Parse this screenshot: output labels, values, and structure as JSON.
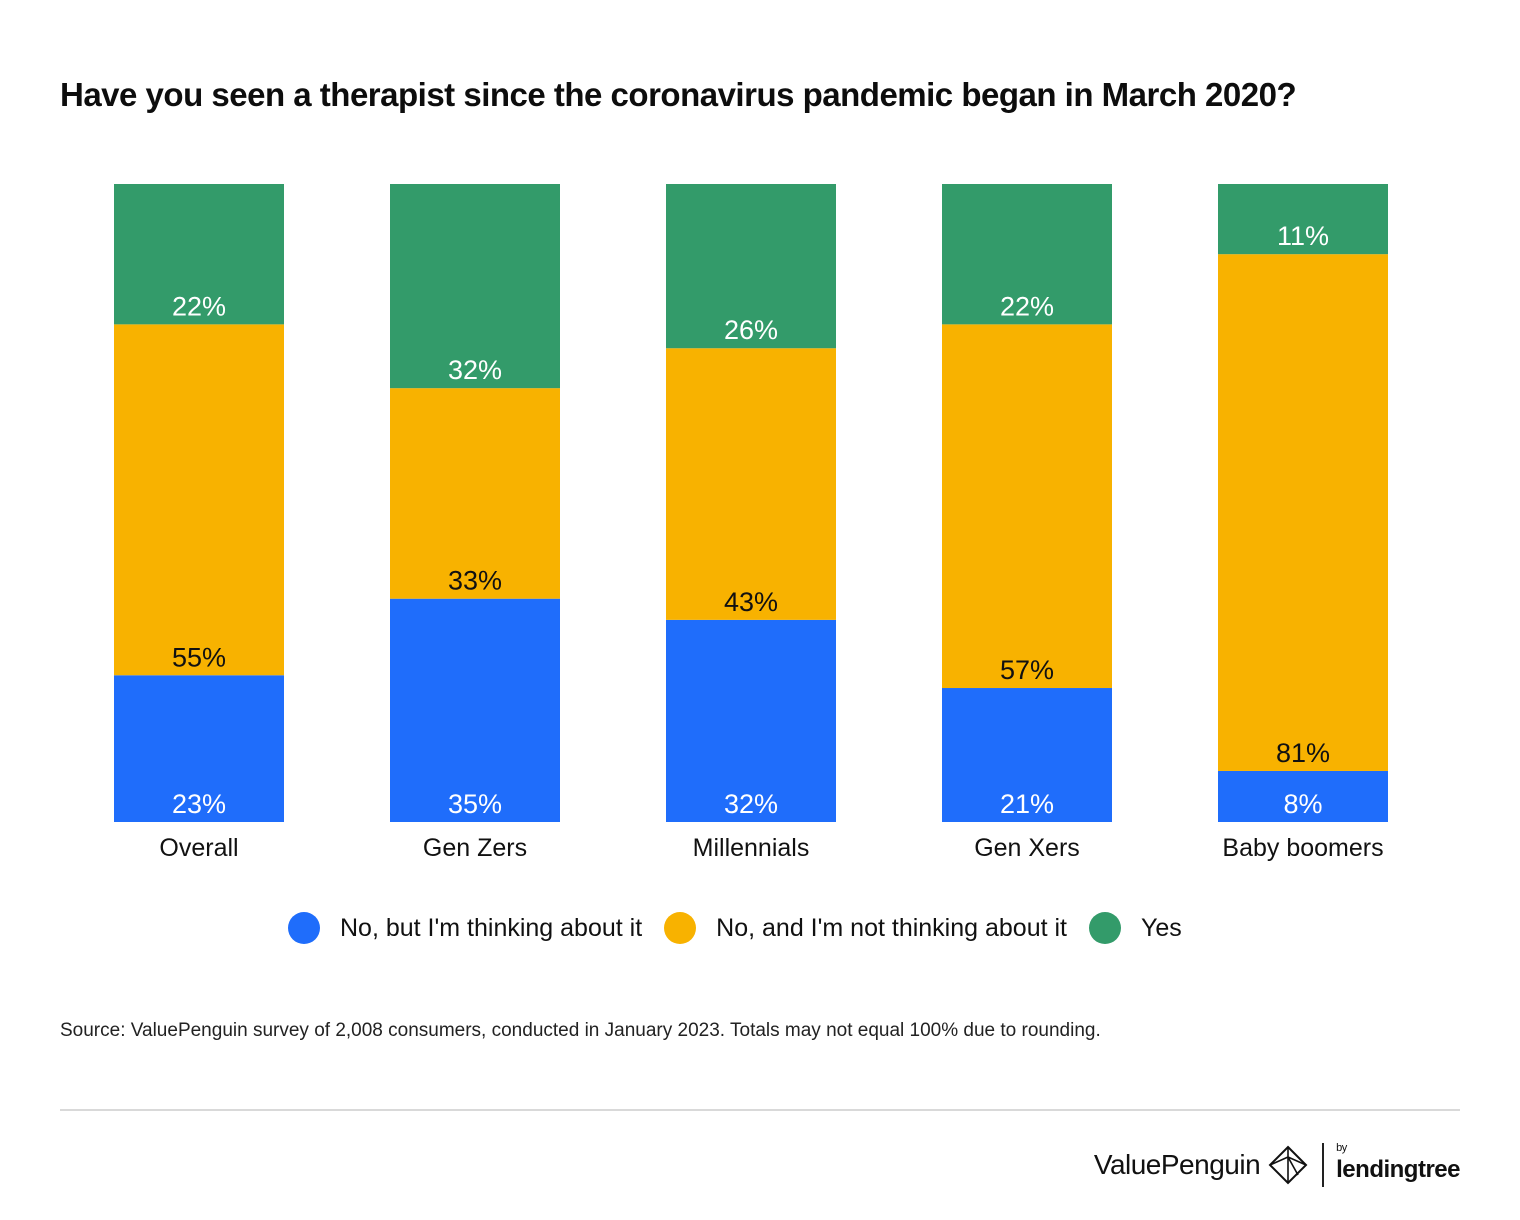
{
  "title": "Have you seen a therapist since the coronavirus pandemic began in March 2020?",
  "chart_data": {
    "type": "bar",
    "stacked": true,
    "percent_stacked": true,
    "title": "Have you seen a therapist since the coronavirus pandemic began in March 2020?",
    "categories": [
      "Overall",
      "Gen Zers",
      "Millennials",
      "Gen Xers",
      "Baby boomers"
    ],
    "series": [
      {
        "name": "No, but I'm thinking about it",
        "color": "#1f6dfb",
        "label_color": "#ffffff",
        "values": [
          23,
          35,
          32,
          21,
          8
        ]
      },
      {
        "name": "No, and I'm not thinking about it",
        "color": "#f8b200",
        "label_color": "#111111",
        "values": [
          55,
          33,
          43,
          57,
          81
        ]
      },
      {
        "name": "Yes",
        "color": "#339b6a",
        "label_color": "#ffffff",
        "values": [
          22,
          32,
          26,
          22,
          11
        ]
      }
    ],
    "value_suffix": "%",
    "xlabel": "",
    "ylabel": "",
    "grid": false,
    "legend": "bottom"
  },
  "legend": [
    {
      "label": "No, but I'm thinking about it",
      "color": "#1f6dfb"
    },
    {
      "label": "No, and I'm not thinking about it",
      "color": "#f8b200"
    },
    {
      "label": "Yes",
      "color": "#339b6a"
    }
  ],
  "source": "Source: ValuePenguin survey of 2,008 consumers, conducted in January 2023. Totals may not equal 100% due to rounding.",
  "branding": {
    "valuepenguin": "ValuePenguin",
    "by": "by",
    "lendingtree": "lendingtree"
  }
}
